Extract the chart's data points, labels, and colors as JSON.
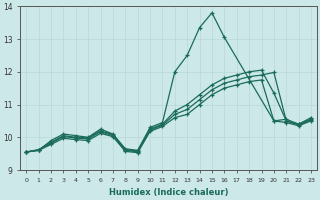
{
  "xlabel": "Humidex (Indice chaleur)",
  "xlim": [
    -0.5,
    23.5
  ],
  "ylim": [
    9,
    14
  ],
  "yticks": [
    9,
    10,
    11,
    12,
    13,
    14
  ],
  "xticks": [
    0,
    1,
    2,
    3,
    4,
    5,
    6,
    7,
    8,
    9,
    10,
    11,
    12,
    13,
    14,
    15,
    16,
    17,
    18,
    19,
    20,
    21,
    22,
    23
  ],
  "bg_color": "#cce8e8",
  "grid_color": "#b8d8d8",
  "line_color": "#1a6b5a",
  "lines": [
    {
      "x": [
        0,
        1,
        2,
        3,
        4,
        5,
        6,
        7,
        8,
        9,
        10,
        11,
        12,
        13,
        14,
        15,
        16,
        20,
        21,
        22,
        23
      ],
      "y": [
        9.55,
        9.6,
        9.9,
        10.1,
        10.05,
        10.0,
        10.25,
        10.1,
        9.65,
        9.6,
        10.3,
        10.45,
        12.0,
        12.5,
        13.35,
        13.8,
        13.05,
        10.5,
        10.55,
        10.4,
        10.6
      ]
    },
    {
      "x": [
        0,
        1,
        2,
        3,
        4,
        5,
        6,
        7,
        8,
        9,
        10,
        11,
        12,
        13,
        14,
        15,
        16,
        17,
        18,
        19,
        20,
        21,
        22,
        23
      ],
      "y": [
        9.55,
        9.62,
        9.85,
        10.05,
        10.0,
        9.98,
        10.2,
        10.08,
        9.62,
        9.58,
        10.25,
        10.4,
        10.8,
        11.0,
        11.3,
        11.6,
        11.8,
        11.9,
        12.0,
        12.05,
        11.35,
        10.5,
        10.4,
        10.55
      ]
    },
    {
      "x": [
        0,
        1,
        2,
        3,
        4,
        5,
        6,
        7,
        8,
        9,
        10,
        11,
        12,
        13,
        14,
        15,
        16,
        17,
        18,
        19,
        20,
        21,
        22,
        23
      ],
      "y": [
        9.55,
        9.62,
        9.82,
        10.02,
        9.98,
        9.95,
        10.17,
        10.05,
        9.6,
        9.56,
        10.22,
        10.37,
        10.7,
        10.85,
        11.15,
        11.45,
        11.65,
        11.75,
        11.85,
        11.9,
        11.98,
        10.5,
        10.38,
        10.53
      ]
    },
    {
      "x": [
        0,
        1,
        2,
        3,
        4,
        5,
        6,
        7,
        8,
        9,
        10,
        11,
        12,
        13,
        14,
        15,
        16,
        17,
        18,
        19,
        20,
        21,
        22,
        23
      ],
      "y": [
        9.55,
        9.6,
        9.78,
        9.97,
        9.93,
        9.9,
        10.12,
        10.02,
        9.57,
        9.53,
        10.18,
        10.33,
        10.6,
        10.7,
        11.0,
        11.3,
        11.5,
        11.6,
        11.7,
        11.75,
        10.5,
        10.45,
        10.35,
        10.5
      ]
    }
  ]
}
